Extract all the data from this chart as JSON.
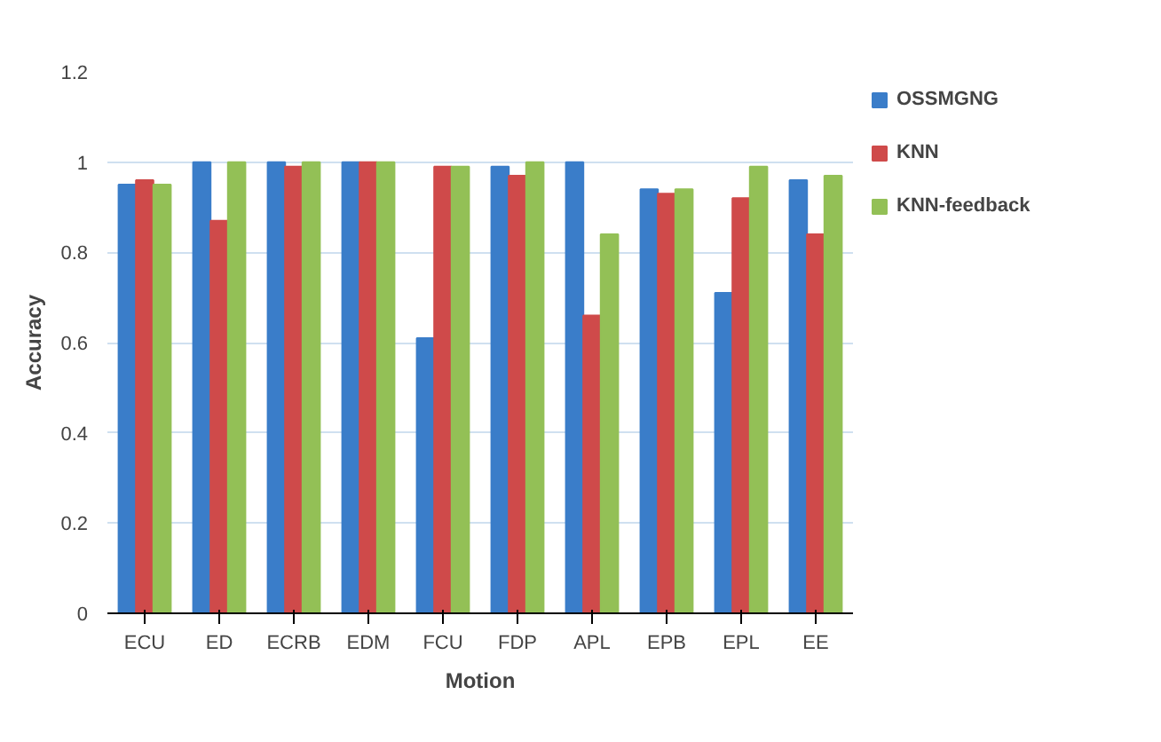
{
  "chart_data": {
    "type": "bar",
    "xlabel": "Motion",
    "ylabel": "Accuracy",
    "categories": [
      "ECU",
      "ED",
      "ECRB",
      "EDM",
      "FCU",
      "FDP",
      "APL",
      "EPB",
      "EPL",
      "EE"
    ],
    "series": [
      {
        "name": "OSSMGNG",
        "color": "#3a7dc9",
        "values": [
          0.95,
          1,
          1,
          1,
          0.61,
          0.99,
          1,
          0.94,
          0.71,
          0.96
        ]
      },
      {
        "name": "KNN",
        "color": "#cf4a4a",
        "values": [
          0.96,
          0.87,
          0.99,
          1,
          0.99,
          0.97,
          0.66,
          0.93,
          0.92,
          0.84
        ]
      },
      {
        "name": "KNN-feedback",
        "color": "#93c056",
        "values": [
          0.95,
          1,
          1,
          1,
          0.99,
          1,
          0.84,
          0.94,
          0.99,
          0.97
        ]
      }
    ],
    "ylim": [
      0,
      1.2
    ],
    "yticks": [
      0,
      0.2,
      0.4,
      0.6,
      0.8,
      1,
      1.2
    ],
    "grid": "y",
    "legend": "top right"
  }
}
